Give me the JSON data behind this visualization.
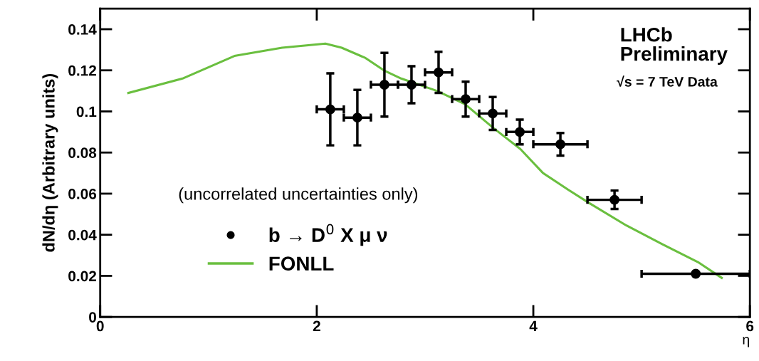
{
  "chart_data": {
    "type": "scatter",
    "xlabel": "η",
    "ylabel": "dN/dη (Arbitrary units)",
    "annotations": [
      "LHCb\nPreliminary",
      "√s = 7 TeV Data",
      "(uncorrelated uncertainties only)"
    ],
    "series": [
      {
        "name": "b → D$^{0}$ X μ ν",
        "color": "#000000",
        "marker": "circle",
        "x": [
          2.125,
          2.375,
          2.625,
          2.875,
          3.125,
          3.375,
          3.625,
          3.875,
          4.25,
          4.75,
          5.5
        ],
        "values": [
          0.101,
          0.097,
          0.113,
          0.113,
          0.119,
          0.106,
          0.099,
          0.09,
          0.084,
          0.057,
          0.021
        ],
        "errors": [
          0.0175,
          0.0135,
          0.0155,
          0.009,
          0.01,
          0.0085,
          0.008,
          0.006,
          0.0055,
          0.0045,
          null
        ],
        "xerrors": [
          0.125,
          0.125,
          0.125,
          0.125,
          0.125,
          0.125,
          0.125,
          0.125,
          0.25,
          0.25,
          0.5
        ]
      },
      {
        "name": "FONLL",
        "type": "line",
        "color": "#6abf3f",
        "x": [
          0.26,
          0.76,
          1.24,
          1.68,
          2.08,
          2.23,
          2.45,
          2.62,
          2.78,
          3.0,
          3.11,
          3.37,
          3.63,
          3.88,
          4.09,
          4.32,
          4.51,
          4.86,
          5.19,
          5.52,
          5.74
        ],
        "values": [
          0.109,
          0.116,
          0.127,
          0.131,
          0.133,
          0.131,
          0.126,
          0.12,
          0.116,
          0.112,
          0.11,
          0.1035,
          0.092,
          0.0817,
          0.07,
          0.062,
          0.0556,
          0.0445,
          0.0354,
          0.0267,
          0.019
        ]
      }
    ],
    "xlim": [
      0,
      6
    ],
    "xticks": [
      0,
      2,
      4,
      6
    ],
    "ylim": [
      0,
      0.15
    ],
    "yticks": [
      0,
      0.02,
      0.04,
      0.06,
      0.08,
      {
        "value": 0.1,
        "label": "0.1"
      },
      0.12,
      0.14
    ],
    "legend": "bottom left",
    "grid": false
  }
}
